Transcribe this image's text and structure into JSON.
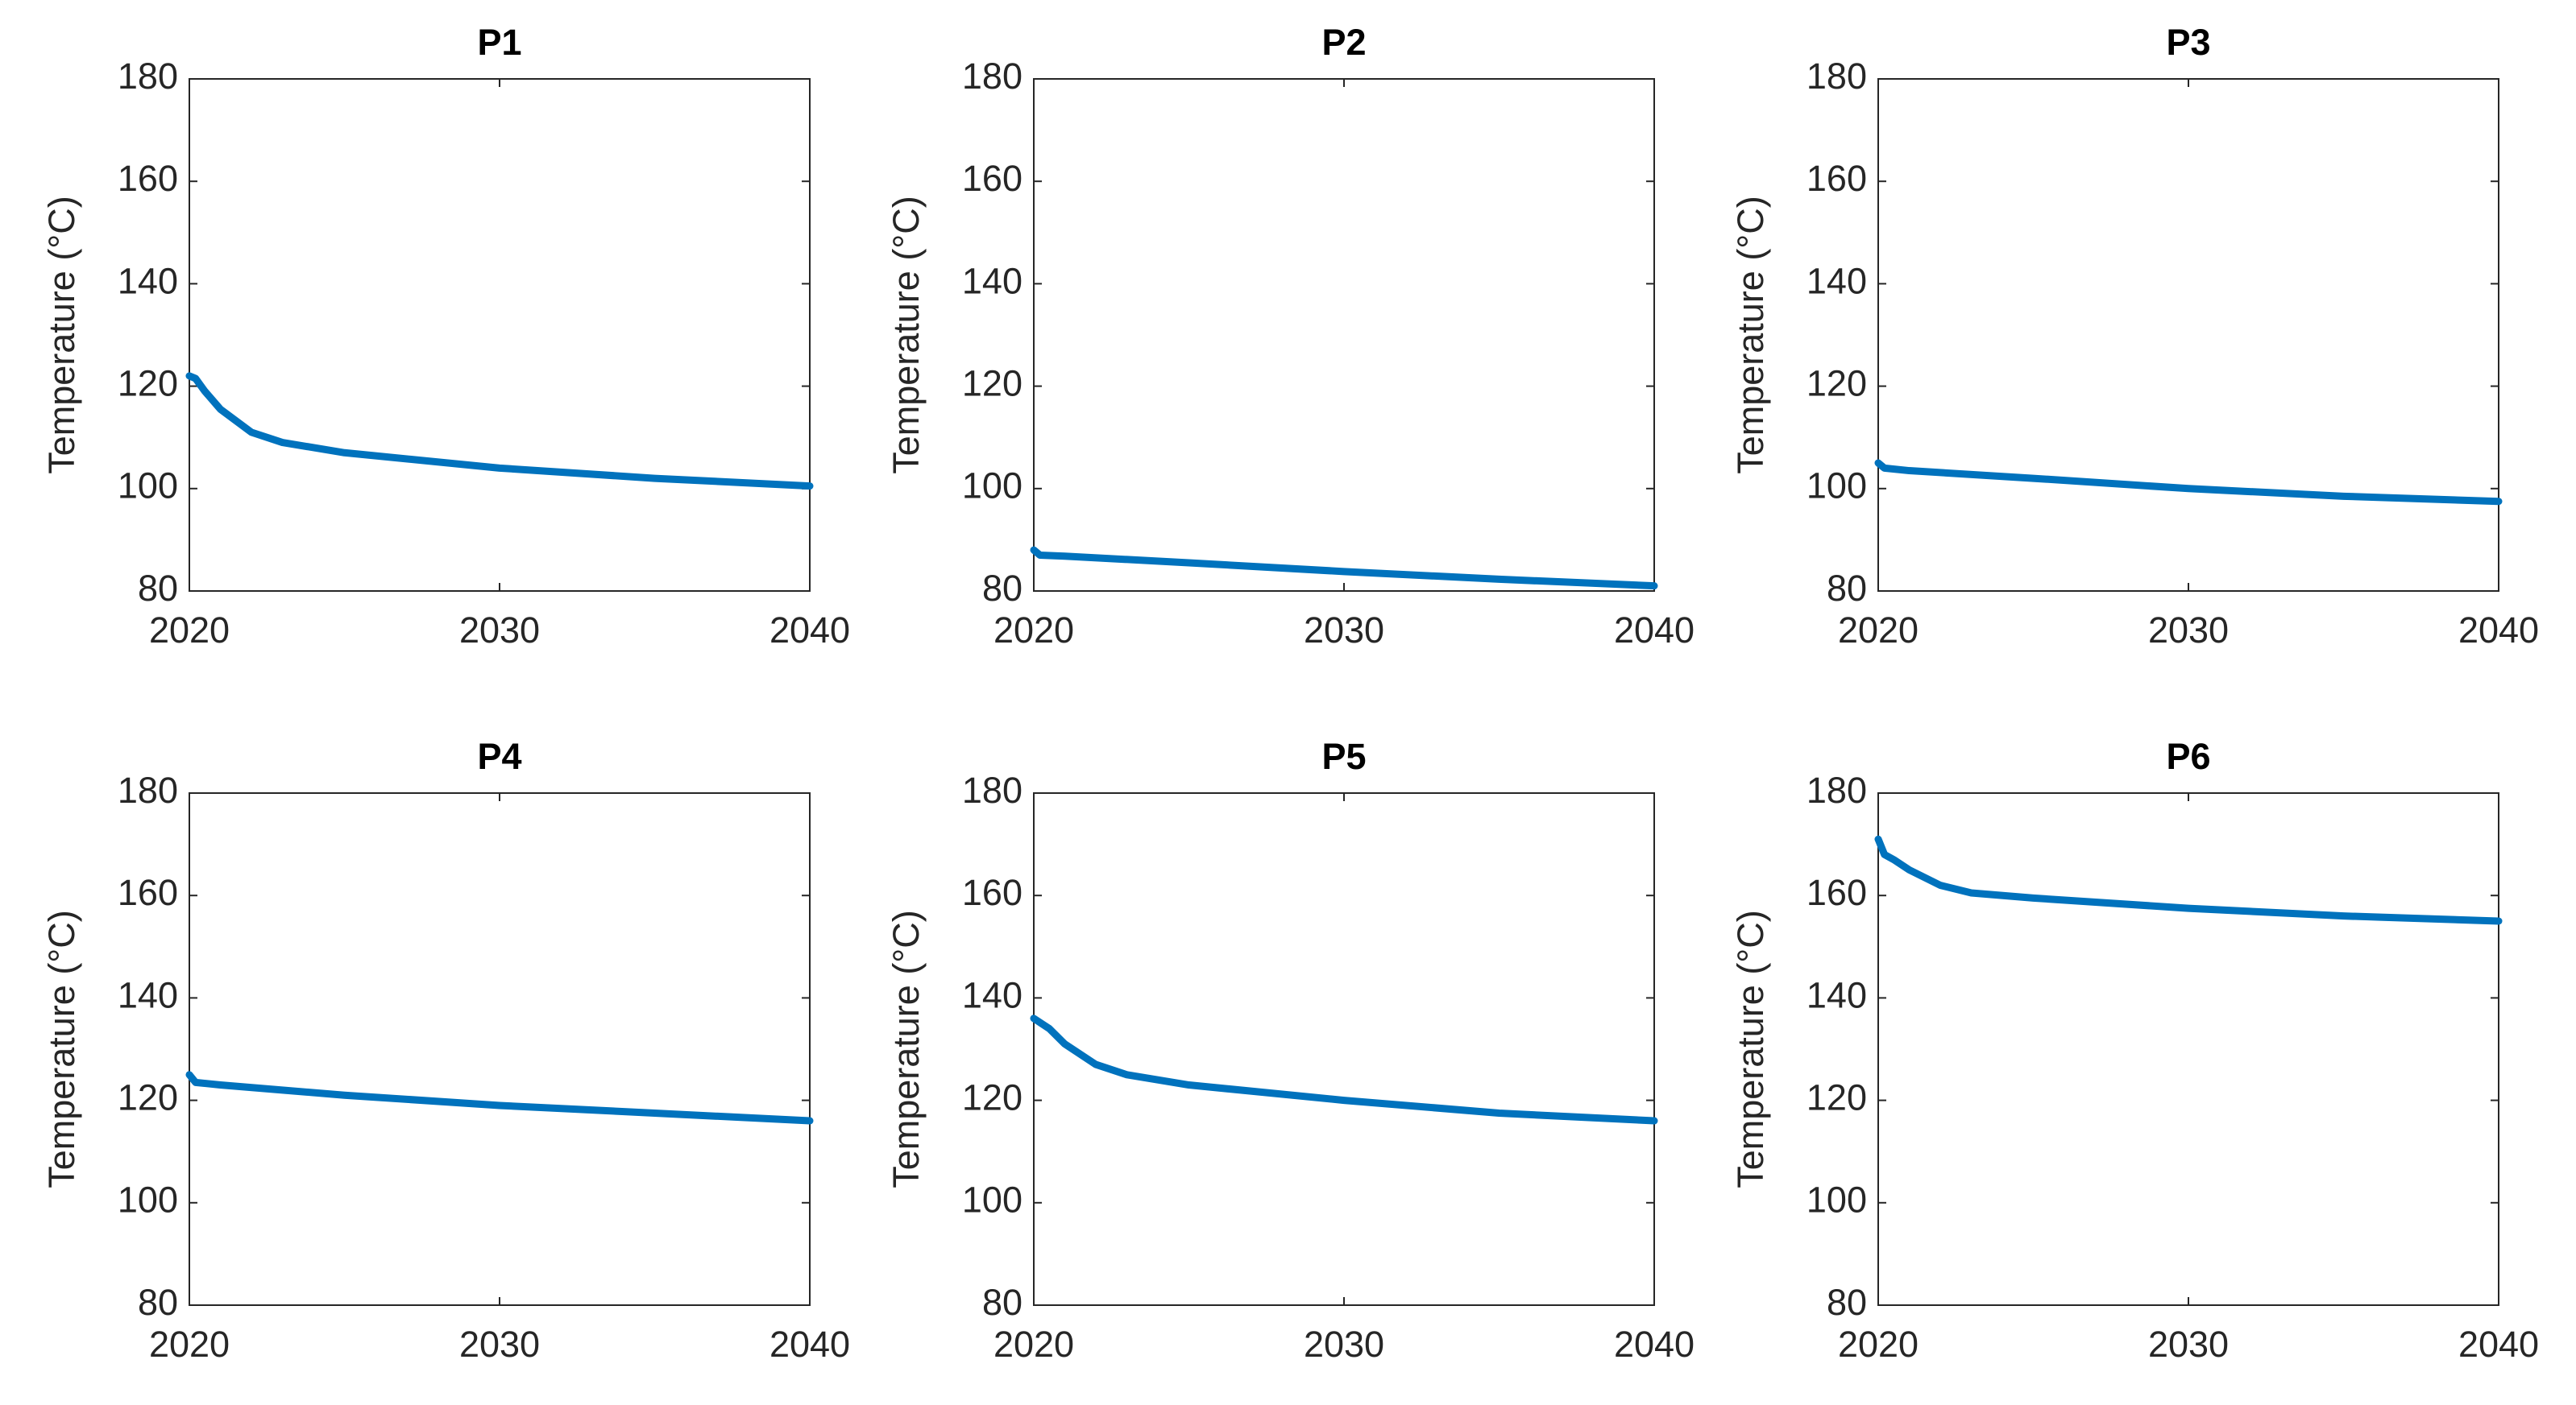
{
  "chart_data": [
    {
      "type": "line",
      "title": "P1",
      "y_label": "Temperature (°C)",
      "x": [
        2020,
        2020.2,
        2020.5,
        2021,
        2022,
        2023,
        2025,
        2030,
        2035,
        2040
      ],
      "series": [
        {
          "color": "#0072bd",
          "values": [
            122,
            121.5,
            119,
            115.5,
            111,
            109,
            107,
            104,
            102,
            100.5
          ]
        }
      ],
      "xlim": [
        2020,
        2040
      ],
      "ylim": [
        80,
        180
      ],
      "xticks": [
        2020,
        2030,
        2040
      ],
      "yticks": [
        80,
        100,
        120,
        140,
        160,
        180
      ]
    },
    {
      "type": "line",
      "title": "P2",
      "y_label": "Temperature (°C)",
      "x": [
        2020,
        2020.2,
        2021,
        2025,
        2030,
        2035,
        2040
      ],
      "series": [
        {
          "color": "#0072bd",
          "values": [
            88,
            87,
            86.8,
            85.5,
            83.8,
            82.3,
            81
          ]
        }
      ],
      "xlim": [
        2020,
        2040
      ],
      "ylim": [
        80,
        180
      ],
      "xticks": [
        2020,
        2030,
        2040
      ],
      "yticks": [
        80,
        100,
        120,
        140,
        160,
        180
      ]
    },
    {
      "type": "line",
      "title": "P3",
      "y_label": "Temperature (°C)",
      "x": [
        2020,
        2020.2,
        2021,
        2025,
        2030,
        2035,
        2040
      ],
      "series": [
        {
          "color": "#0072bd",
          "values": [
            105,
            104,
            103.5,
            102,
            100,
            98.5,
            97.5
          ]
        }
      ],
      "xlim": [
        2020,
        2040
      ],
      "ylim": [
        80,
        180
      ],
      "xticks": [
        2020,
        2030,
        2040
      ],
      "yticks": [
        80,
        100,
        120,
        140,
        160,
        180
      ]
    },
    {
      "type": "line",
      "title": "P4",
      "y_label": "Temperature (°C)",
      "x": [
        2020,
        2020.2,
        2021,
        2025,
        2030,
        2035,
        2040
      ],
      "series": [
        {
          "color": "#0072bd",
          "values": [
            125,
            123.5,
            123,
            121,
            119,
            117.5,
            116
          ]
        }
      ],
      "xlim": [
        2020,
        2040
      ],
      "ylim": [
        80,
        180
      ],
      "xticks": [
        2020,
        2030,
        2040
      ],
      "yticks": [
        80,
        100,
        120,
        140,
        160,
        180
      ]
    },
    {
      "type": "line",
      "title": "P5",
      "y_label": "Temperature (°C)",
      "x": [
        2020,
        2020.5,
        2021,
        2022,
        2023,
        2025,
        2030,
        2035,
        2040
      ],
      "series": [
        {
          "color": "#0072bd",
          "values": [
            136,
            134,
            131,
            127,
            125,
            123,
            120,
            117.5,
            116
          ]
        }
      ],
      "xlim": [
        2020,
        2040
      ],
      "ylim": [
        80,
        180
      ],
      "xticks": [
        2020,
        2030,
        2040
      ],
      "yticks": [
        80,
        100,
        120,
        140,
        160,
        180
      ]
    },
    {
      "type": "line",
      "title": "P6",
      "y_label": "Temperature (°C)",
      "x": [
        2020,
        2020.2,
        2020.5,
        2021,
        2022,
        2023,
        2025,
        2030,
        2035,
        2040
      ],
      "series": [
        {
          "color": "#0072bd",
          "values": [
            171,
            168,
            167,
            165,
            162,
            160.5,
            159.5,
            157.5,
            156,
            155
          ]
        }
      ],
      "xlim": [
        2020,
        2040
      ],
      "ylim": [
        80,
        180
      ],
      "xticks": [
        2020,
        2030,
        2040
      ],
      "yticks": [
        80,
        100,
        120,
        140,
        160,
        180
      ]
    }
  ]
}
